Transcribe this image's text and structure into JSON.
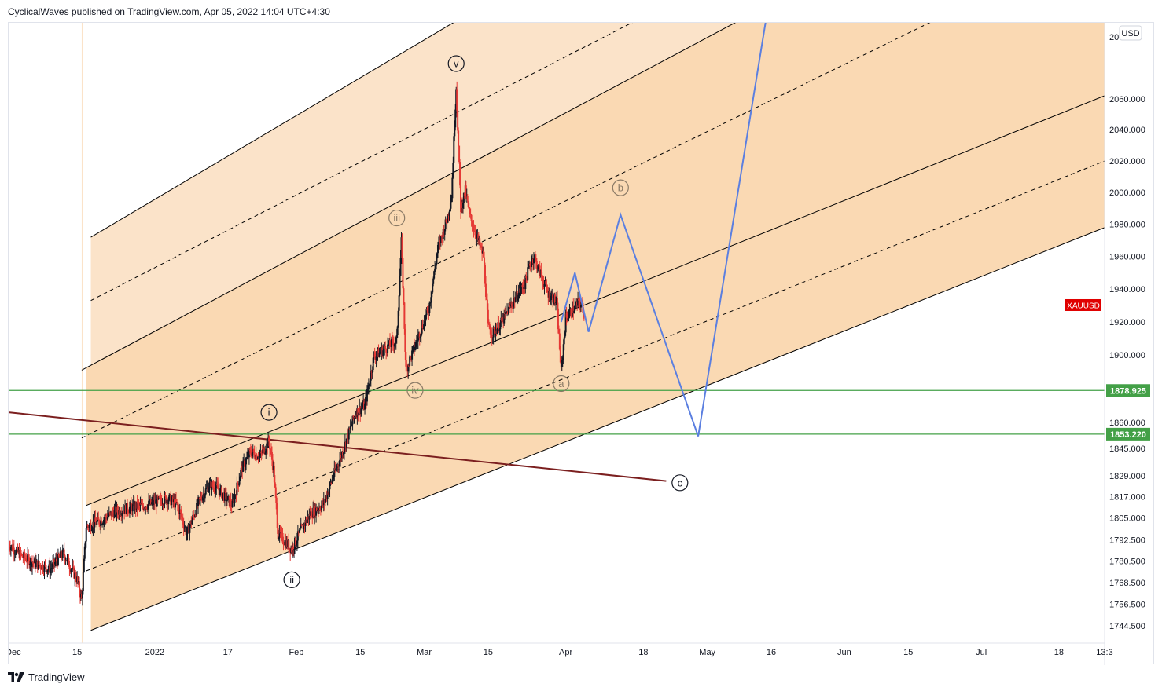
{
  "header": {
    "publisher_line": "CyclicalWaves published on TradingView.com, Apr 05, 2022 14:04 UTC+4:30"
  },
  "footer": {
    "brand": "TradingView",
    "logo_icon": "tradingview-logo-icon"
  },
  "colors": {
    "background": "#ffffff",
    "channel_fill_outer": "#fbe3c9",
    "channel_fill_inner": "#fad9b3",
    "channel_line": "#000000",
    "candle_up": "#131722",
    "candle_down": "#e53935",
    "projection": "#5b7fe0",
    "support_line": "#43a047",
    "trendline": "#7b1f1f",
    "price_badge_bg": "#e00000",
    "level_badge_bg": "#43a047"
  },
  "chart_data": {
    "type": "candlestick",
    "symbol": "XAUUSD",
    "currency": "USD",
    "y_axis": {
      "scale": "log",
      "ylim": [
        1735,
        2110
      ],
      "ticks": [
        "2060.000",
        "2040.000",
        "2020.000",
        "2000.000",
        "1980.000",
        "1960.000",
        "1940.000",
        "1920.000",
        "1900.000",
        "1860.000",
        "1845.000",
        "1829.000",
        "1817.000",
        "1805.000",
        "1792.500",
        "1780.500",
        "1768.500",
        "1756.500",
        "1744.500"
      ],
      "top_tick_partial": "20"
    },
    "x_axis": {
      "range": [
        "2021-11-30",
        "2022-07-28"
      ],
      "ticks": [
        {
          "label": "Dec",
          "date": "2021-12-01"
        },
        {
          "label": "15",
          "date": "2021-12-15"
        },
        {
          "label": "2022",
          "date": "2022-01-01"
        },
        {
          "label": "17",
          "date": "2022-01-17"
        },
        {
          "label": "Feb",
          "date": "2022-02-01"
        },
        {
          "label": "15",
          "date": "2022-02-15"
        },
        {
          "label": "Mar",
          "date": "2022-03-01"
        },
        {
          "label": "15",
          "date": "2022-03-15"
        },
        {
          "label": "Apr",
          "date": "2022-04-01"
        },
        {
          "label": "18",
          "date": "2022-04-18"
        },
        {
          "label": "May",
          "date": "2022-05-02"
        },
        {
          "label": "16",
          "date": "2022-05-16"
        },
        {
          "label": "Jun",
          "date": "2022-06-01"
        },
        {
          "label": "15",
          "date": "2022-06-15"
        },
        {
          "label": "Jul",
          "date": "2022-07-01"
        },
        {
          "label": "18",
          "date": "2022-07-18"
        },
        {
          "label": "13:3",
          "date": "2022-07-28"
        }
      ]
    },
    "price_path": [
      [
        "2021-11-30",
        1790
      ],
      [
        "2021-12-03",
        1783
      ],
      [
        "2021-12-06",
        1779
      ],
      [
        "2021-12-09",
        1776
      ],
      [
        "2021-12-12",
        1785
      ],
      [
        "2021-12-15",
        1770
      ],
      [
        "2021-12-16",
        1759
      ],
      [
        "2021-12-17",
        1800
      ],
      [
        "2021-12-20",
        1803
      ],
      [
        "2021-12-23",
        1808
      ],
      [
        "2021-12-27",
        1811
      ],
      [
        "2021-12-30",
        1812
      ],
      [
        "2022-01-04",
        1816
      ],
      [
        "2022-01-06",
        1812
      ],
      [
        "2022-01-08",
        1796
      ],
      [
        "2022-01-11",
        1816
      ],
      [
        "2022-01-13",
        1824
      ],
      [
        "2022-01-15",
        1821
      ],
      [
        "2022-01-18",
        1812
      ],
      [
        "2022-01-20",
        1833
      ],
      [
        "2022-01-22",
        1843
      ],
      [
        "2022-01-24",
        1840
      ],
      [
        "2022-01-26",
        1849
      ],
      [
        "2022-01-27",
        1833
      ],
      [
        "2022-01-28",
        1796
      ],
      [
        "2022-01-31",
        1787
      ],
      [
        "2022-02-02",
        1798
      ],
      [
        "2022-02-04",
        1807
      ],
      [
        "2022-02-07",
        1813
      ],
      [
        "2022-02-09",
        1828
      ],
      [
        "2022-02-11",
        1842
      ],
      [
        "2022-02-14",
        1866
      ],
      [
        "2022-02-16",
        1870
      ],
      [
        "2022-02-18",
        1899
      ],
      [
        "2022-02-21",
        1905
      ],
      [
        "2022-02-23",
        1909
      ],
      [
        "2022-02-24",
        1969
      ],
      [
        "2022-02-25",
        1891
      ],
      [
        "2022-02-28",
        1913
      ],
      [
        "2022-03-02",
        1928
      ],
      [
        "2022-03-04",
        1965
      ],
      [
        "2022-03-06",
        1983
      ],
      [
        "2022-03-07",
        1998
      ],
      [
        "2022-03-08",
        2068
      ],
      [
        "2022-03-09",
        1990
      ],
      [
        "2022-03-10",
        2001
      ],
      [
        "2022-03-11",
        1985
      ],
      [
        "2022-03-14",
        1960
      ],
      [
        "2022-03-15",
        1917
      ],
      [
        "2022-03-16",
        1913
      ],
      [
        "2022-03-18",
        1920
      ],
      [
        "2022-03-21",
        1935
      ],
      [
        "2022-03-23",
        1943
      ],
      [
        "2022-03-24",
        1954
      ],
      [
        "2022-03-25",
        1960
      ],
      [
        "2022-03-28",
        1938
      ],
      [
        "2022-03-30",
        1932
      ],
      [
        "2022-03-31",
        1890
      ],
      [
        "2022-04-01",
        1922
      ],
      [
        "2022-04-04",
        1932
      ],
      [
        "2022-04-05",
        1926
      ]
    ],
    "pitchfork_channel": {
      "lines": [
        {
          "role": "outer-upper",
          "points": [
            [
              "2021-12-18",
              1972
            ],
            [
              "2022-04-28",
              2205
            ]
          ],
          "style": "solid"
        },
        {
          "role": "upper-dashed",
          "points": [
            [
              "2021-12-18",
              1933
            ],
            [
              "2022-06-14",
              2205
            ]
          ],
          "style": "dashed"
        },
        {
          "role": "upper-median",
          "points": [
            [
              "2021-12-16",
              1891
            ],
            [
              "2022-05-13",
              2118
            ]
          ],
          "style": "solid"
        },
        {
          "role": "mid-dashed-upper",
          "points": [
            [
              "2021-12-16",
              1851
            ],
            [
              "2022-06-25",
              2118
            ]
          ],
          "style": "dashed"
        },
        {
          "role": "median",
          "points": [
            [
              "2021-12-17",
              1812
            ],
            [
              "2022-07-28",
              2062
            ]
          ],
          "style": "solid"
        },
        {
          "role": "mid-dashed-lower",
          "points": [
            [
              "2021-12-17",
              1775
            ],
            [
              "2022-07-28",
              2020
            ]
          ],
          "style": "dashed"
        },
        {
          "role": "outer-lower",
          "points": [
            [
              "2021-12-18",
              1742
            ],
            [
              "2022-07-28",
              1978
            ]
          ],
          "style": "solid"
        }
      ]
    },
    "trendline": {
      "points": [
        [
          "2021-11-30",
          1866
        ],
        [
          "2022-04-23",
          1826
        ]
      ]
    },
    "horizontal_levels": [
      {
        "price": 1878.925,
        "label": "1878.925"
      },
      {
        "price": 1853.22,
        "label": "1853.220"
      }
    ],
    "last_price_label": "XAUUSD",
    "projection_path": [
      [
        "2022-03-31",
        1920
      ],
      [
        "2022-04-03",
        1950
      ],
      [
        "2022-04-06",
        1914
      ],
      [
        "2022-04-13",
        1986
      ],
      [
        "2022-04-30",
        1852
      ],
      [
        "2022-05-22",
        2250
      ]
    ],
    "wave_labels": [
      {
        "text": "i",
        "date": "2022-01-26",
        "price": 1866,
        "style": "dark"
      },
      {
        "text": "ii",
        "date": "2022-01-31",
        "price": 1770,
        "style": "dark"
      },
      {
        "text": "iii",
        "date": "2022-02-23",
        "price": 1984,
        "style": "light"
      },
      {
        "text": "iv",
        "date": "2022-02-27",
        "price": 1879,
        "style": "light"
      },
      {
        "text": "v",
        "date": "2022-03-08",
        "price": 2083,
        "style": "dark"
      },
      {
        "text": "a",
        "date": "2022-03-31",
        "price": 1883,
        "style": "light"
      },
      {
        "text": "b",
        "date": "2022-04-13",
        "price": 2003,
        "style": "light"
      },
      {
        "text": "c",
        "date": "2022-04-26",
        "price": 1825,
        "style": "dark"
      }
    ]
  }
}
